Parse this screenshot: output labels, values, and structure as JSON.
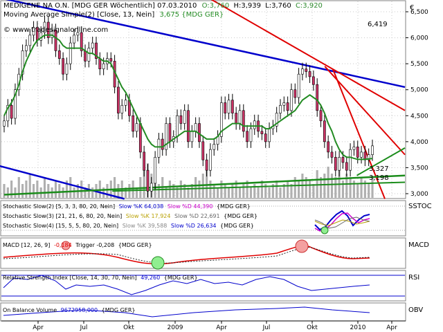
{
  "chart_data": {
    "type": "candlestick",
    "title": "MEDIGENE NA O.N. [MDG GER  Wöchentlich] 07.03.2010",
    "quote": {
      "open": "O:3,760",
      "high": "H:3,939",
      "low": "L:3,760",
      "close": "C:3,920"
    },
    "ma_legend": "Moving Average Simple(2) [Close, 13, Nein]",
    "ma_value": "3,675 {MDG GER}",
    "watermark": "© www.tradesignalonline.com",
    "currency": "€",
    "y_ticks": [
      "6,500",
      "6,000",
      "5,500",
      "5,000",
      "4,500",
      "4,000",
      "3,500",
      "3,000"
    ],
    "y_range": [
      2.92,
      6.62
    ],
    "x_ticks": [
      "Apr",
      "Jul",
      "Okt",
      "2009",
      "Apr",
      "Jul",
      "Okt",
      "2010",
      "Apr"
    ],
    "level_labels": [
      "6,419",
      "3,327",
      "3,198"
    ],
    "closes": [
      4.4,
      4.7,
      4.45,
      5.0,
      5.3,
      5.75,
      5.85,
      6.05,
      6.2,
      5.95,
      6.1,
      6.3,
      6.0,
      6.15,
      5.75,
      5.6,
      5.3,
      5.5,
      5.9,
      6.05,
      6.1,
      5.75,
      5.55,
      5.8,
      5.9,
      5.6,
      5.4,
      5.5,
      5.6,
      5.55,
      5.05,
      4.55,
      4.7,
      4.8,
      4.5,
      4.2,
      4.35,
      3.8,
      3.45,
      3.05,
      3.2,
      3.7,
      4.05,
      3.85,
      4.35,
      4.0,
      4.1,
      4.5,
      4.35,
      4.6,
      4.0,
      4.2,
      4.35,
      4.0,
      3.65,
      3.45,
      3.85,
      3.95,
      4.1,
      4.75,
      4.55,
      4.8,
      4.55,
      4.35,
      4.6,
      4.2,
      4.0,
      4.25,
      4.4,
      4.2,
      4.15,
      4.0,
      4.25,
      4.3,
      4.55,
      4.7,
      4.75,
      4.6,
      5.0,
      4.85,
      5.3,
      5.4,
      5.35,
      5.25,
      5.1,
      4.6,
      4.4,
      4.0,
      3.8,
      3.7,
      3.45,
      3.7,
      3.6,
      3.45,
      3.85,
      3.9,
      3.7,
      3.8,
      3.65,
      3.75,
      3.92
    ],
    "ma_values": [
      4.5,
      4.65,
      4.75,
      4.9,
      5.1,
      5.35,
      5.55,
      5.7,
      5.85,
      5.95,
      6.0,
      6.05,
      6.05,
      6.05,
      6.0,
      5.95,
      5.85,
      5.8,
      5.8,
      5.8,
      5.8,
      5.8,
      5.75,
      5.7,
      5.7,
      5.65,
      5.6,
      5.55,
      5.55,
      5.5,
      5.35,
      5.2,
      5.05,
      4.95,
      4.8,
      4.65,
      4.5,
      4.35,
      4.2,
      4.05,
      3.95,
      3.9,
      3.9,
      3.9,
      3.95,
      4.0,
      4.05,
      4.1,
      4.15,
      4.2,
      4.2,
      4.2,
      4.2,
      4.15,
      4.1,
      4.05,
      4.05,
      4.05,
      4.1,
      4.2,
      4.25,
      4.3,
      4.35,
      4.35,
      4.35,
      4.3,
      4.3,
      4.3,
      4.3,
      4.3,
      4.3,
      4.25,
      4.25,
      4.3,
      4.35,
      4.4,
      4.45,
      4.5,
      4.55,
      4.6,
      4.7,
      4.8,
      4.85,
      4.9,
      4.85,
      4.8,
      4.7,
      4.55,
      4.35,
      4.2,
      4.0,
      3.85,
      3.75,
      3.7,
      3.7,
      3.68,
      3.66,
      3.66,
      3.66,
      3.67,
      3.675
    ],
    "volumes": [
      0.4,
      0.3,
      0.5,
      0.3,
      0.6,
      0.4,
      0.5,
      0.7,
      0.4,
      0.5,
      0.3,
      0.6,
      0.4,
      0.3,
      0.5,
      0.4,
      0.3,
      0.5,
      0.6,
      0.3,
      0.4,
      0.5,
      0.3,
      0.4,
      0.3,
      0.4,
      0.5,
      0.3,
      0.4,
      0.5,
      0.6,
      0.4,
      0.5,
      0.3,
      0.4,
      0.5,
      0.3,
      0.6,
      0.8,
      1.0,
      0.7,
      0.5,
      0.4,
      0.6,
      0.3,
      0.5,
      0.4,
      0.3,
      0.5,
      0.4,
      0.3,
      0.4,
      0.6,
      0.5,
      0.7,
      0.8,
      0.5,
      0.4,
      0.3,
      0.5,
      0.4,
      0.3,
      0.4,
      0.5,
      0.3,
      0.4,
      0.5,
      0.3,
      0.4,
      0.3,
      0.5,
      0.4,
      0.3,
      0.4,
      0.5,
      0.3,
      0.4,
      0.5,
      0.4,
      0.6,
      0.5,
      0.7,
      0.6,
      0.5,
      0.4,
      0.8,
      0.6,
      0.7,
      0.9,
      0.7,
      0.6,
      0.8,
      0.5,
      0.7,
      0.6,
      0.5,
      0.4,
      0.6,
      0.5,
      0.4,
      0.6
    ],
    "panels": {
      "stoch": {
        "tag": "SSTOC",
        "line1": {
          "name": "Stochastic Slow(2) [5, 3, 3, 80, 20, Nein]",
          "k": "Slow %K 64,038",
          "d": "Slow %D 44,390",
          "src": "{MDG GER}"
        },
        "line2": {
          "name": "Stochastic Slow(3) [21, 21, 6, 80, 20, Nein]",
          "k": "Slow %K 17,924",
          "d": "Slow %D 22,691",
          "src": "{MDG GER}"
        },
        "line3": {
          "name": "Stochastic Slow(4) [15, 5, 5, 80, 20, Nein]",
          "k": "Slow %K 39,588",
          "d": "Slow %D 26,634",
          "src": "{MDG GER}"
        }
      },
      "macd": {
        "tag": "MACD",
        "name": "MACD [12, 26, 9]",
        "value": "-0,184",
        "trigger": "Trigger -0,208",
        "src": "{MDG GER}"
      },
      "rsi": {
        "tag": "RSI",
        "name": "Relative Strength Index [Close, 14, 30, 70, Nein]",
        "value": "49,260",
        "src": "{MDG GER}"
      },
      "obv": {
        "tag": "OBV",
        "name": "On Balance Volume",
        "value": "9672958,000",
        "src": "{MDG GER}"
      }
    },
    "colors": {
      "bull": "#ffffff",
      "bear": "#cc3366",
      "ma": "#228b22",
      "blue_trend": "#0000cc",
      "red_trend": "#e00000",
      "green_trend": "#1a8c1a",
      "volume": "#b0b0b0"
    }
  }
}
